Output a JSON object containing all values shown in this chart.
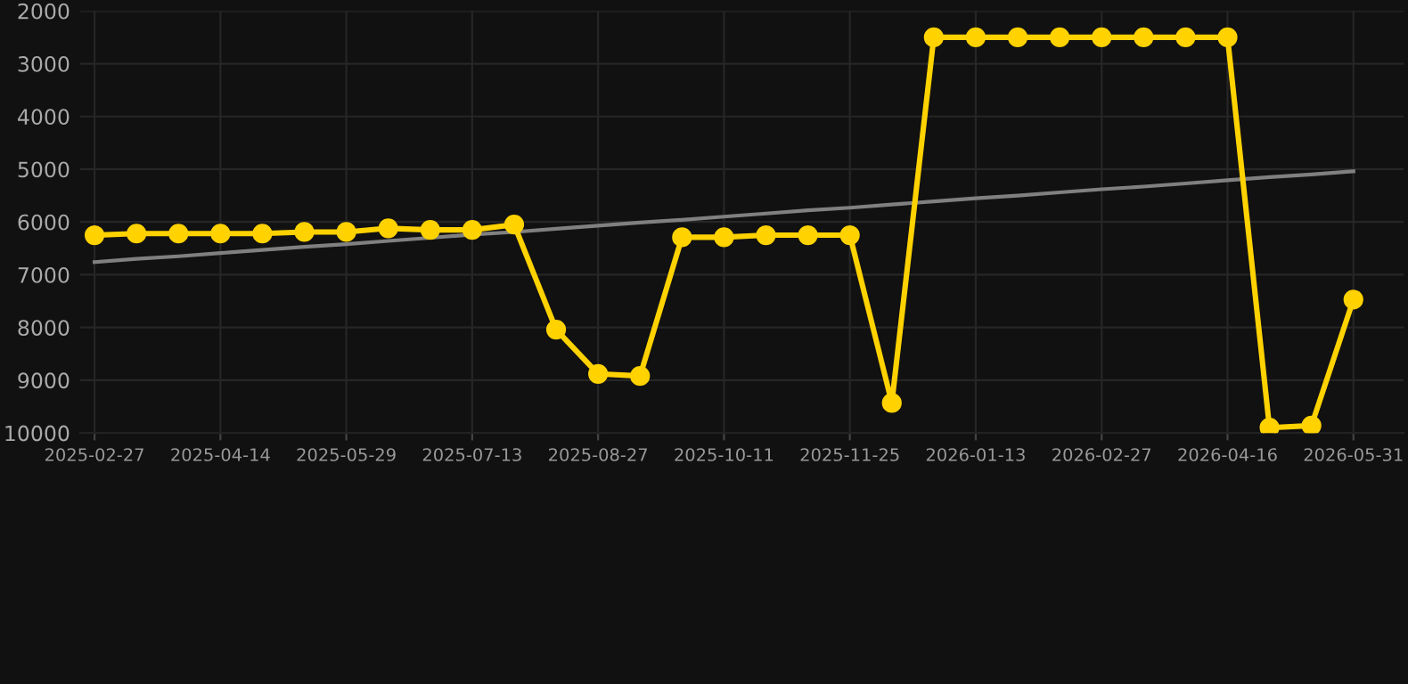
{
  "chart_data": {
    "type": "line",
    "categories": [
      "2025-02-27",
      null,
      null,
      "2025-04-14",
      null,
      null,
      "2025-05-29",
      null,
      null,
      "2025-07-13",
      null,
      null,
      "2025-08-27",
      null,
      null,
      "2025-10-11",
      null,
      null,
      "2025-11-25",
      null,
      null,
      "2026-01-13",
      null,
      null,
      "2026-02-27",
      null,
      null,
      "2026-04-16",
      null,
      null,
      "2026-05-31"
    ],
    "series": [
      {
        "color": "#ffd200",
        "marker": "circle",
        "values": [
          6250,
          6220,
          6220,
          6220,
          6220,
          6190,
          6190,
          6120,
          6150,
          6150,
          6050,
          8040,
          8880,
          8920,
          6290,
          6290,
          6250,
          6250,
          6250,
          9430,
          2500,
          2500,
          2500,
          2500,
          2500,
          2500,
          2500,
          2500,
          9900,
          9860,
          7470
        ]
      },
      {
        "color": "#808080",
        "marker": "none",
        "values": [
          6760,
          6700,
          6650,
          6590,
          6530,
          6470,
          6420,
          6360,
          6300,
          6240,
          6190,
          6130,
          6070,
          6010,
          5960,
          5900,
          5840,
          5780,
          5730,
          5670,
          5610,
          5550,
          5500,
          5440,
          5380,
          5330,
          5270,
          5210,
          5150,
          5100,
          5040
        ]
      }
    ],
    "ylim": [
      10000,
      2000
    ],
    "yticks": [
      2000,
      3000,
      4000,
      5000,
      6000,
      7000,
      8000,
      9000,
      10000
    ],
    "grid": true,
    "line_style": "solid"
  }
}
